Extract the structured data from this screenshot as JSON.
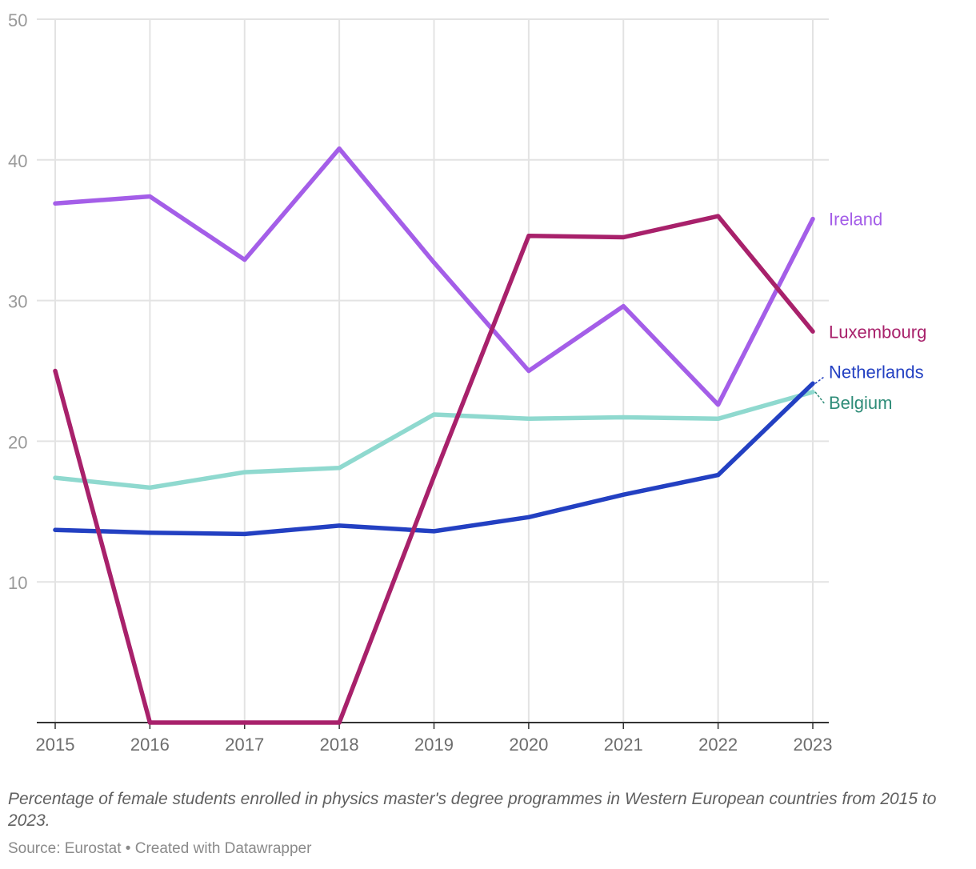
{
  "chart_data": {
    "type": "line",
    "x": [
      2015,
      2016,
      2017,
      2018,
      2019,
      2020,
      2021,
      2022,
      2023
    ],
    "x_tick_labels": [
      "2015",
      "2016",
      "2017",
      "2018",
      "2019",
      "2020",
      "2021",
      "2022",
      "2023"
    ],
    "ylim": [
      0,
      50
    ],
    "y_ticks": [
      10,
      20,
      30,
      40,
      50
    ],
    "y_tick_labels": [
      "10",
      "20",
      "30",
      "40",
      "50"
    ],
    "grid": true,
    "series": [
      {
        "name": "Ireland",
        "color": "#a45ee8",
        "label_color": "#a45ee8",
        "values": [
          36.9,
          37.4,
          32.9,
          40.8,
          32.7,
          25.0,
          29.6,
          22.6,
          35.8
        ]
      },
      {
        "name": "Luxembourg",
        "color": "#a8216b",
        "label_color": "#a8216b",
        "values": [
          25.0,
          0,
          0,
          0,
          17.5,
          34.6,
          34.5,
          36.0,
          27.8
        ]
      },
      {
        "name": "Netherlands",
        "color": "#2340c2",
        "label_color": "#2340c2",
        "values": [
          13.7,
          13.5,
          13.4,
          14.0,
          13.6,
          14.6,
          16.2,
          17.6,
          24.1
        ]
      },
      {
        "name": "Belgium",
        "color": "#8fd9cf",
        "label_color": "#2e8c78",
        "values": [
          17.4,
          16.7,
          17.8,
          18.1,
          21.9,
          21.6,
          21.7,
          21.6,
          23.5
        ]
      }
    ]
  },
  "caption": "Percentage of female students enrolled in physics master's degree programmes in Western European countries from 2015 to 2023.",
  "source": "Source: Eurostat • Created with Datawrapper"
}
